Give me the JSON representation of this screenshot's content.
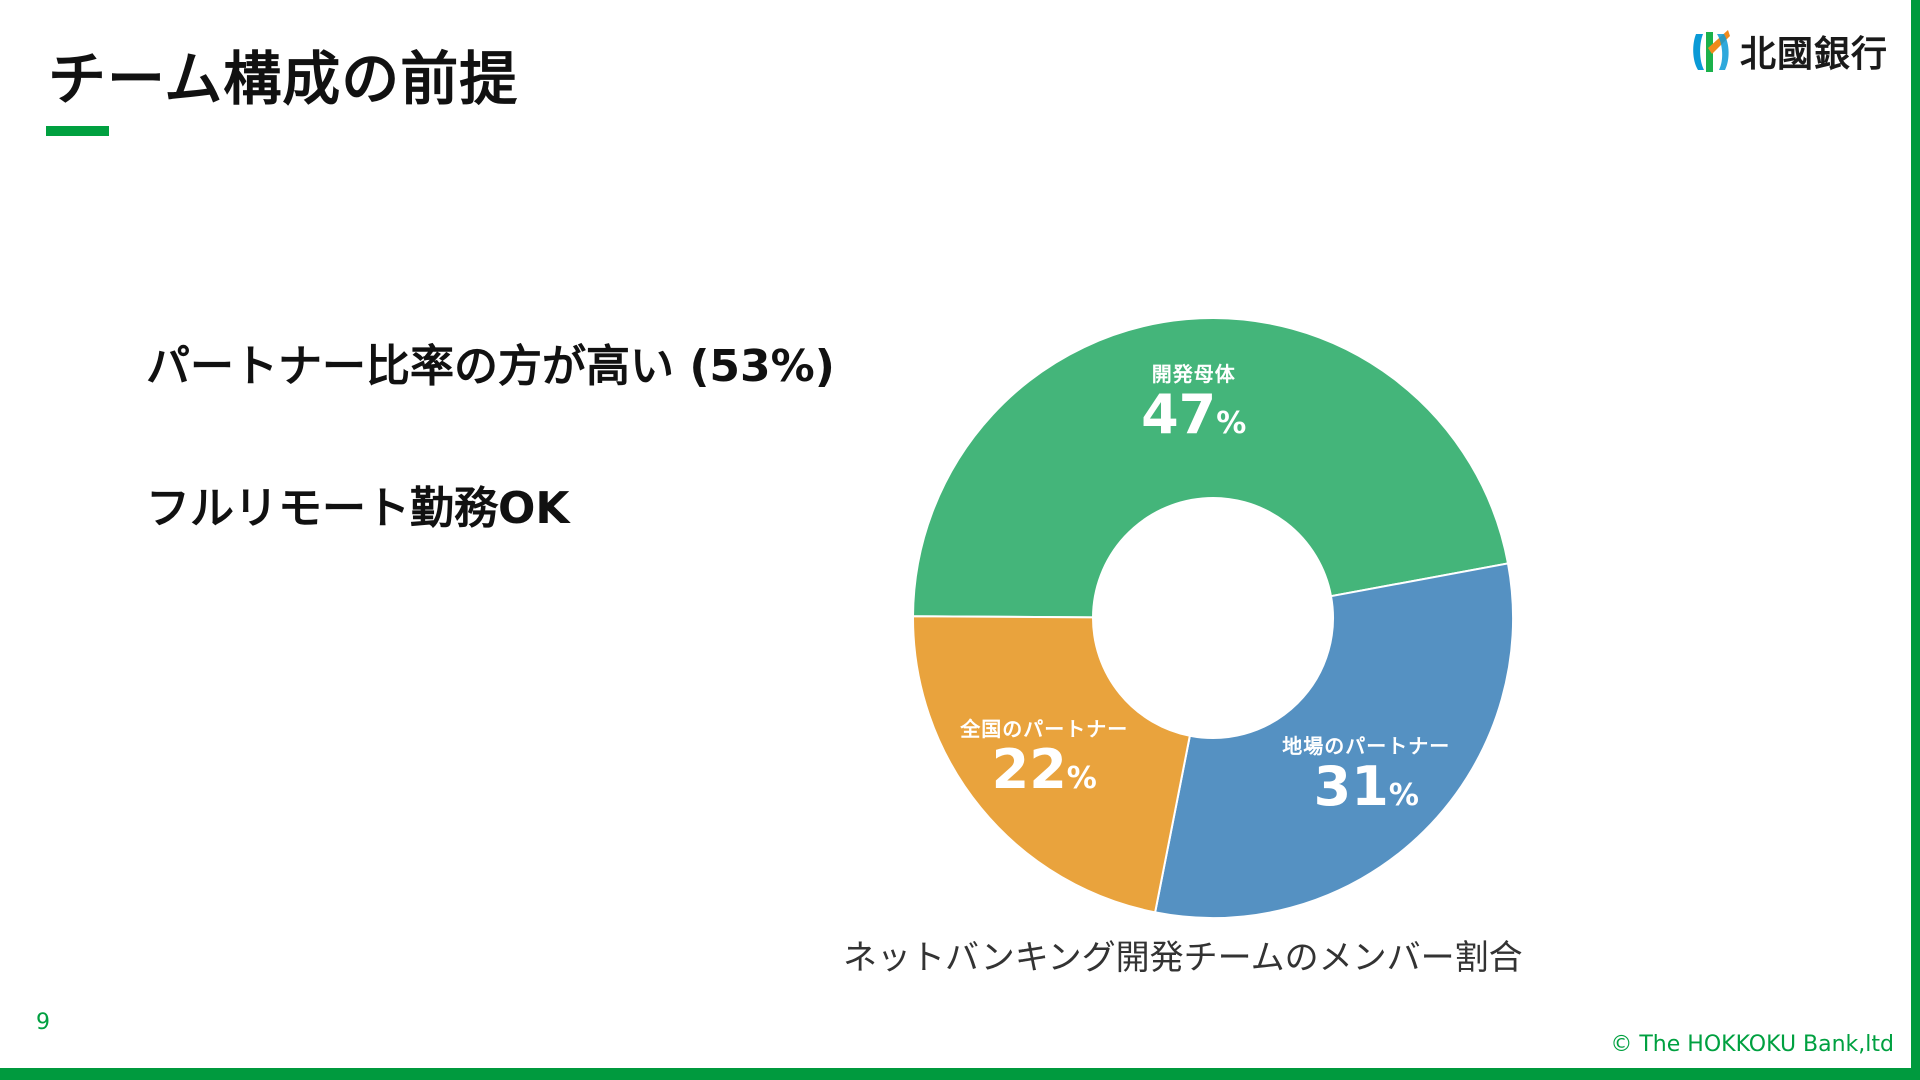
{
  "slide": {
    "title": "チーム構成の前提",
    "logo": {
      "text": "北國銀行",
      "icon": "hokkoku-bank-logo-icon"
    },
    "bullets": [
      "パートナー比率の方が高い (53%)",
      "フルリモート勤務OK"
    ],
    "caption": "ネットバンキング開発チームのメンバー割合",
    "page_number": "9",
    "copyright": "© The HOKKOKU Bank,ltd",
    "colors": {
      "accent_green": "#009a3e",
      "segment_green": "#44b57a",
      "segment_blue": "#5591c2",
      "segment_orange": "#e9a33d"
    }
  },
  "chart_data": {
    "type": "pie",
    "donut": true,
    "title": "ネットバンキング開発チームのメンバー割合",
    "unit": "%",
    "series": [
      {
        "name": "開発母体",
        "value": 47,
        "label": "47",
        "color": "#44b57a"
      },
      {
        "name": "地場のパートナー",
        "value": 31,
        "label": "31",
        "color": "#5591c2"
      },
      {
        "name": "全国のパートナー",
        "value": 22,
        "label": "22",
        "color": "#e9a33d"
      }
    ]
  }
}
